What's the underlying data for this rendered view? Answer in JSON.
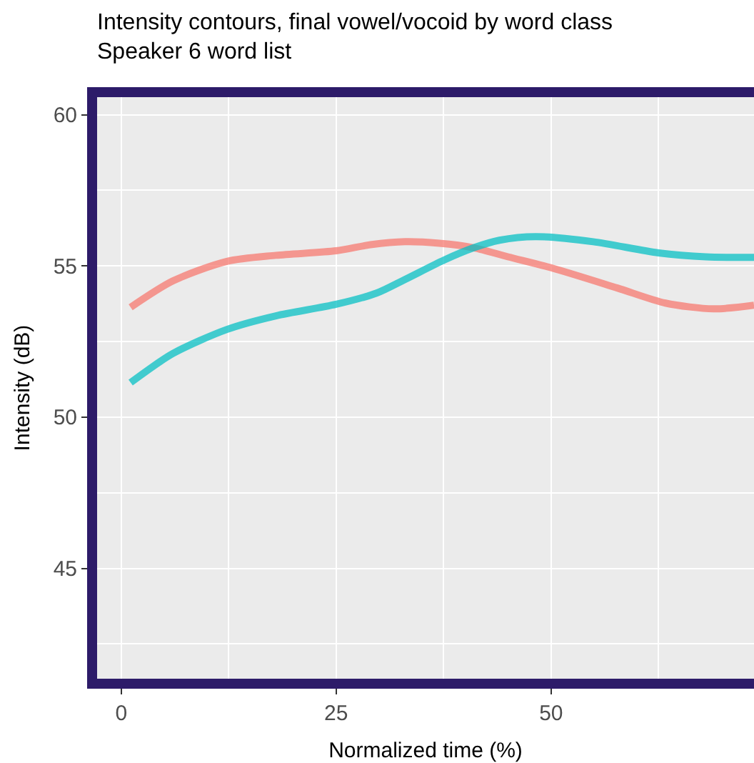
{
  "chart_data": {
    "type": "line",
    "title": "Intensity contours, final vowel/vocoid by word class",
    "subtitle": "Speaker 6 word list",
    "xlabel": "Normalized time (%)",
    "ylabel": "Intensity (dB)",
    "series": [
      {
        "color": "#f8766d",
        "x": [
          1.1,
          6,
          12.3,
          18,
          25,
          29,
          33,
          37,
          41,
          45,
          50,
          57.7,
          63.3,
          68.9,
          73.6
        ],
        "values": [
          53.63,
          54.5,
          55.15,
          55.35,
          55.5,
          55.7,
          55.8,
          55.75,
          55.6,
          55.3,
          54.94,
          54.27,
          53.77,
          53.58,
          53.7
        ]
      },
      {
        "color": "#00bfc4",
        "x": [
          1.1,
          6,
          12.3,
          18,
          25,
          29.7,
          33,
          37.6,
          41,
          44,
          48.2,
          54.9,
          62.5,
          68,
          73.6
        ],
        "values": [
          51.14,
          52.1,
          52.9,
          53.35,
          53.73,
          54.1,
          54.55,
          55.2,
          55.6,
          55.85,
          55.97,
          55.8,
          55.43,
          55.3,
          55.28
        ]
      }
    ],
    "xlim": [
      -2.8,
      73.6
    ],
    "xticks": [
      0,
      25,
      50
    ],
    "ylim": [
      41.35,
      60.58
    ],
    "yticks": [
      45,
      50,
      55,
      60
    ],
    "grid": true,
    "line_style": "solid",
    "marker": "none"
  }
}
